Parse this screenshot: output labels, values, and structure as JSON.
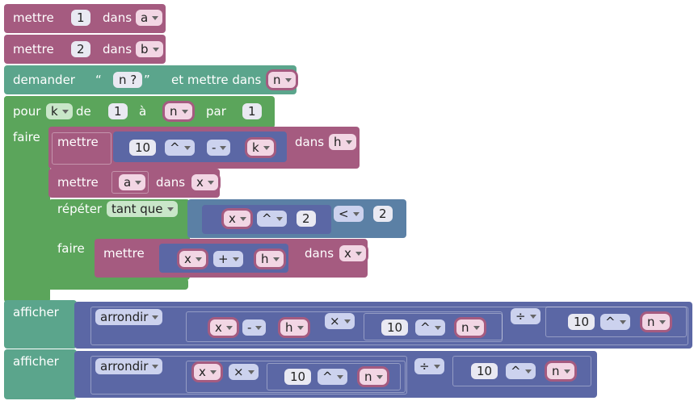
{
  "program": {
    "set_a": {
      "label": "mettre",
      "value": "1",
      "into": "dans",
      "var": "a"
    },
    "set_b": {
      "label": "mettre",
      "value": "2",
      "into": "dans",
      "var": "b"
    },
    "ask": {
      "label": "demander",
      "open_quote": "“",
      "prompt": "n ?",
      "close_quote": "”",
      "into": "et mettre dans",
      "var": "n"
    },
    "loop": {
      "label": "pour",
      "var": "k",
      "from_label": "de",
      "from": "1",
      "to_label": "à",
      "to": "n",
      "by_label": "par",
      "by": "1",
      "do_label": "faire",
      "body": {
        "set_h": {
          "label": "mettre",
          "base": "10",
          "op1": "^",
          "op2": "-",
          "var": "k",
          "into": "dans",
          "target": "h"
        },
        "set_x": {
          "label": "mettre",
          "value": "a",
          "into": "dans",
          "target": "x"
        },
        "repeat": {
          "label": "répéter",
          "mode": "tant que",
          "left": "x",
          "op1": "^",
          "right": "2",
          "cmp": "<",
          "limit": "2",
          "do_label": "faire",
          "set": {
            "label": "mettre",
            "a": "x",
            "op": "+",
            "b": "h",
            "into": "dans",
            "target": "x"
          }
        }
      }
    },
    "print1": {
      "label": "afficher",
      "func": "arrondir",
      "a": "x",
      "op1": "-",
      "b": "h",
      "op2": "×",
      "base": "10",
      "op3": "^",
      "exp": "n",
      "div": "÷",
      "base2": "10",
      "op4": "^",
      "exp2": "n"
    },
    "print2": {
      "label": "afficher",
      "func": "arrondir",
      "a": "x",
      "op1": "×",
      "base": "10",
      "op2": "^",
      "exp": "n",
      "div": "÷",
      "base2": "10",
      "op3": "^",
      "exp2": "n"
    }
  }
}
